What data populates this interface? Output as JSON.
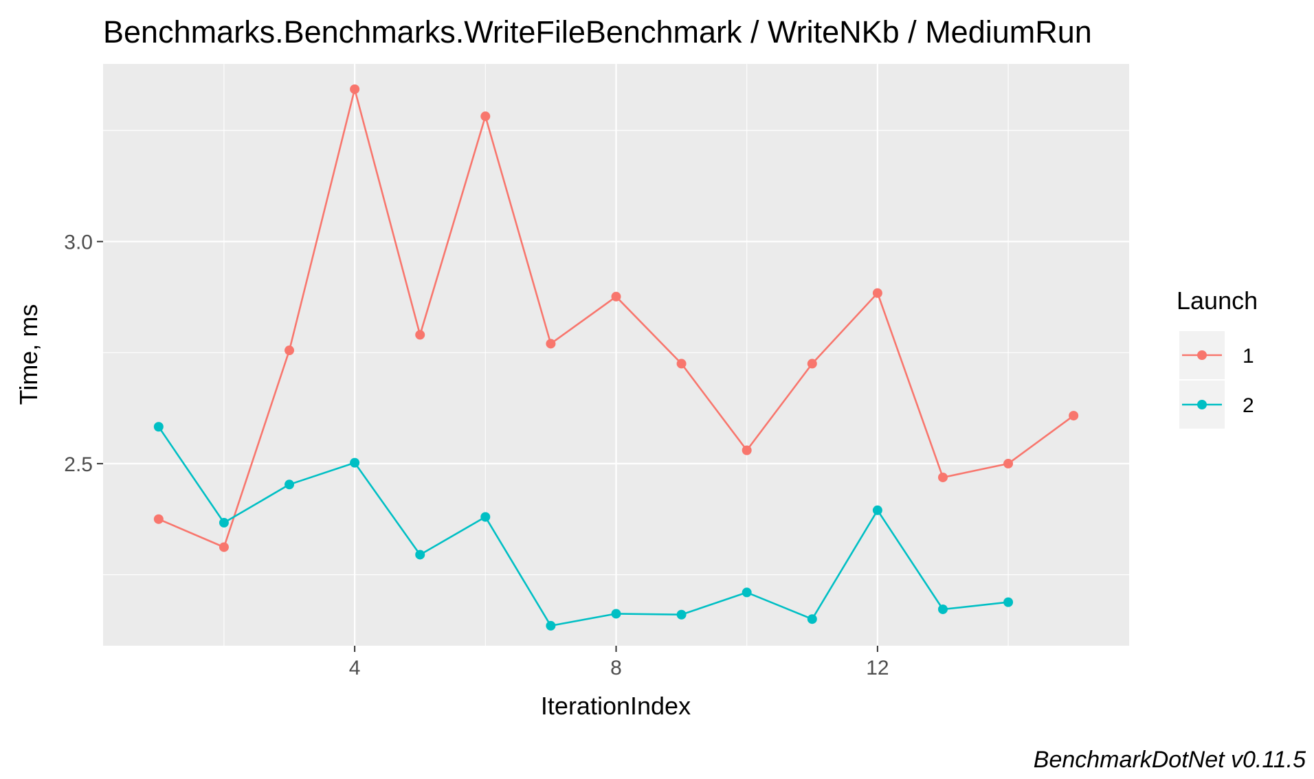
{
  "chart_data": {
    "type": "line",
    "title": "Benchmarks.Benchmarks.WriteFileBenchmark / WriteNKb / MediumRun",
    "xlabel": "IterationIndex",
    "ylabel": "Time, ms",
    "caption": "BenchmarkDotNet v0.11.5",
    "xlim": [
      0.15,
      15.85
    ],
    "ylim": [
      2.09,
      3.4
    ],
    "x_ticks": [
      4,
      8,
      12
    ],
    "x_tick_labels": [
      "4",
      "8",
      "12"
    ],
    "y_ticks": [
      2.5,
      3.0
    ],
    "y_tick_labels": [
      "2.5",
      "3.0"
    ],
    "grid": true,
    "legend": {
      "title": "Launch",
      "position": "right",
      "entries": [
        "1",
        "2"
      ]
    },
    "series": [
      {
        "name": "1",
        "color": "#F8766D",
        "x": [
          1,
          2,
          3,
          4,
          5,
          6,
          7,
          8,
          9,
          10,
          11,
          12,
          13,
          14,
          15
        ],
        "values": [
          2.375,
          2.312,
          2.755,
          3.343,
          2.79,
          3.282,
          2.77,
          2.876,
          2.725,
          2.53,
          2.725,
          2.884,
          2.469,
          2.5,
          2.608
        ]
      },
      {
        "name": "2",
        "color": "#00BFC4",
        "x": [
          1,
          2,
          3,
          4,
          5,
          6,
          7,
          8,
          9,
          10,
          11,
          12,
          13,
          14
        ],
        "values": [
          2.583,
          2.367,
          2.453,
          2.502,
          2.295,
          2.38,
          2.135,
          2.162,
          2.16,
          2.21,
          2.15,
          2.395,
          2.172,
          2.188
        ]
      }
    ]
  }
}
